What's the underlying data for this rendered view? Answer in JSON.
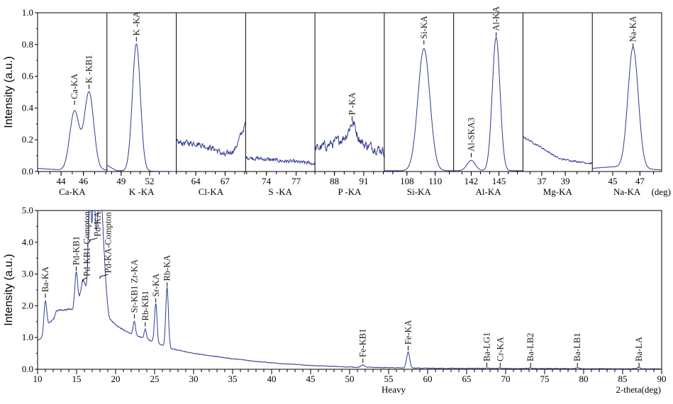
{
  "chart_data": [
    {
      "type": "line",
      "ylabel": "Intensity (a.u.)",
      "ylim": [
        0,
        1.0
      ],
      "yticks": [
        "0.0",
        "0.2",
        "0.4",
        "0.6",
        "0.8",
        "1.0"
      ],
      "xunit": "(deg)",
      "grid": false,
      "series_color": "#2f3b8f",
      "panels": [
        {
          "name": "Ca-KA",
          "xlim": [
            41.9,
            48.1
          ],
          "xticks": [
            44,
            46
          ],
          "bg": [
            [
              41.9,
              0.02
            ],
            [
              44,
              0.01
            ],
            [
              48.1,
              0.01
            ]
          ],
          "noise": 0.002,
          "peaks": [
            {
              "x": 45.2,
              "h": 0.37,
              "w": 0.42,
              "label": "Ca-KA",
              "ly": 0.42
            },
            {
              "x": 46.5,
              "h": 0.49,
              "w": 0.42,
              "label": "K -KB1",
              "ly": 0.52
            }
          ]
        },
        {
          "name": "K -KA",
          "xlim": [
            47.5,
            54.8
          ],
          "xticks": [
            49,
            52
          ],
          "bg": [
            [
              47.5,
              0.04
            ],
            [
              48.5,
              0.005
            ],
            [
              54.8,
              0.0
            ]
          ],
          "noise": 0.001,
          "peaks": [
            {
              "x": 50.6,
              "h": 0.8,
              "w": 0.42,
              "label": "K -KA",
              "ly": 0.82
            }
          ]
        },
        {
          "name": "Cl-KA",
          "xlim": [
            62,
            69.1
          ],
          "xticks": [
            64,
            67
          ],
          "bg": [
            [
              62,
              0.18
            ],
            [
              64,
              0.18
            ],
            [
              66,
              0.14
            ],
            [
              67,
              0.1
            ],
            [
              68,
              0.14
            ],
            [
              69.1,
              0.3
            ]
          ],
          "noise": 0.05,
          "peaks": []
        },
        {
          "name": "S -KA",
          "xlim": [
            71.9,
            78.9
          ],
          "xticks": [
            74,
            77
          ],
          "bg": [
            [
              71.9,
              0.09
            ],
            [
              75,
              0.07
            ],
            [
              78.9,
              0.05
            ]
          ],
          "noise": 0.035,
          "peaks": []
        },
        {
          "name": "P -KA",
          "xlim": [
            86,
            93.1
          ],
          "xticks": [
            88,
            91
          ],
          "bg": [
            [
              86,
              0.14
            ],
            [
              88,
              0.18
            ],
            [
              90,
              0.25
            ],
            [
              91,
              0.17
            ],
            [
              93.1,
              0.13
            ]
          ],
          "noise": 0.08,
          "peaks": [
            {
              "x": 89.8,
              "h": 0.06,
              "w": 0.3,
              "label": "P -KA",
              "ly": 0.32
            }
          ]
        },
        {
          "name": "Si-KA",
          "xlim": [
            106.4,
            111.3
          ],
          "xticks": [
            108,
            110
          ],
          "bg": [
            [
              106.4,
              0.005
            ],
            [
              111.3,
              0.005
            ]
          ],
          "noise": 0.001,
          "peaks": [
            {
              "x": 109.2,
              "h": 0.77,
              "w": 0.42,
              "label": "Si-KA",
              "ly": 0.8
            }
          ]
        },
        {
          "name": "Al-KA",
          "xlim": [
            140.1,
            147.6
          ],
          "xticks": [
            142,
            145
          ],
          "bg": [
            [
              140.1,
              0.005
            ],
            [
              147.6,
              0.005
            ]
          ],
          "noise": 0.001,
          "peaks": [
            {
              "x": 142.0,
              "h": 0.065,
              "w": 0.45,
              "label": "Al-SKA3",
              "ly": 0.09
            },
            {
              "x": 144.7,
              "h": 0.84,
              "w": 0.42,
              "label": "Al-KA",
              "ly": 0.85
            }
          ]
        },
        {
          "name": "Mg-KA",
          "xlim": [
            35.4,
            41.3
          ],
          "xticks": [
            37,
            39
          ],
          "bg": [
            [
              35.4,
              0.22
            ],
            [
              37,
              0.15
            ],
            [
              38.5,
              0.08
            ],
            [
              41.3,
              0.05
            ]
          ],
          "noise": 0.015,
          "peaks": []
        },
        {
          "name": "Na-KA",
          "xlim": [
            43.5,
            48.6
          ],
          "xticks": [
            45,
            47
          ],
          "bg": [
            [
              43.5,
              0.02
            ],
            [
              45,
              0.03
            ],
            [
              48.6,
              0.01
            ]
          ],
          "noise": 0.002,
          "peaks": [
            {
              "x": 46.5,
              "h": 0.76,
              "w": 0.38,
              "label": "Na-KA",
              "ly": 0.78
            }
          ]
        }
      ]
    },
    {
      "type": "line",
      "ylabel": "Intensity (a.u.)",
      "xlabel": "2-theta(deg)",
      "subtitle": "Heavy",
      "xlim": [
        10,
        90
      ],
      "ylim": [
        0,
        5.0
      ],
      "xticks": [
        10,
        15,
        20,
        25,
        30,
        35,
        40,
        45,
        50,
        55,
        60,
        65,
        70,
        75,
        80,
        85,
        90
      ],
      "yticks": [
        "0.0",
        "1.0",
        "2.0",
        "3.0",
        "4.0",
        "5.0"
      ],
      "grid": false,
      "series_color": "#2f3b8f",
      "bg": [
        [
          10,
          0.9
        ],
        [
          10.6,
          1.0
        ],
        [
          11.5,
          1.45
        ],
        [
          12.1,
          1.6
        ],
        [
          12.4,
          1.85
        ],
        [
          14.5,
          1.9
        ],
        [
          15.5,
          2.3
        ],
        [
          16.3,
          2.6
        ],
        [
          18.6,
          2.4
        ],
        [
          19.2,
          1.6
        ],
        [
          20,
          1.4
        ],
        [
          22,
          1.1
        ],
        [
          24,
          0.95
        ],
        [
          25.5,
          0.8
        ],
        [
          27,
          0.65
        ],
        [
          30,
          0.5
        ],
        [
          35,
          0.33
        ],
        [
          40,
          0.2
        ],
        [
          45,
          0.12
        ],
        [
          50,
          0.07
        ],
        [
          60,
          0.03
        ],
        [
          90,
          0.01
        ]
      ],
      "noise": 0.03,
      "peaks": [
        {
          "x": 11.0,
          "h": 0.95,
          "w": 0.18,
          "label": "Ba-KA",
          "ly": 2.25
        },
        {
          "x": 14.95,
          "h": 1.0,
          "w": 0.17,
          "label": "Pd-KB1",
          "ly": 3.1
        },
        {
          "x": 15.8,
          "h": 0.4,
          "w": 0.2,
          "label": "Pd-KB1-Compton",
          "ly": 2.75
        },
        {
          "x": 16.7,
          "h": 3.5,
          "w": 0.17,
          "label": "Pd-KA",
          "ly": 4.0
        },
        {
          "x": 17.2,
          "h": 3.0,
          "w": 0.15
        },
        {
          "x": 18.0,
          "h": 3.2,
          "w": 0.4,
          "label": "Pd-KA-Compton",
          "ly": 2.85
        },
        {
          "x": 22.4,
          "h": 0.45,
          "w": 0.15,
          "label": "Sr-KB1 Zr-KA",
          "ly": 1.6
        },
        {
          "x": 23.8,
          "h": 0.3,
          "w": 0.14,
          "label": "Rb-KB1",
          "ly": 1.35
        },
        {
          "x": 25.15,
          "h": 1.25,
          "w": 0.16,
          "label": "Sr-KA",
          "ly": 2.1
        },
        {
          "x": 26.6,
          "h": 1.9,
          "w": 0.17,
          "label": "Rb-KA",
          "ly": 2.6
        },
        {
          "x": 51.7,
          "h": 0.08,
          "w": 0.2,
          "label": "Fe-KB1",
          "ly": 0.2
        },
        {
          "x": 57.5,
          "h": 0.5,
          "w": 0.2,
          "label": "Fe-KA",
          "ly": 0.6
        },
        {
          "x": 67.6,
          "h": 0.02,
          "w": 0.2,
          "label": "Ba-LG1",
          "ly": 0.07
        },
        {
          "x": 69.3,
          "h": 0.015,
          "w": 0.2,
          "label": "Cr-KA",
          "ly": 0.07
        },
        {
          "x": 73.2,
          "h": 0.02,
          "w": 0.2,
          "label": "Ba-LB2",
          "ly": 0.07
        },
        {
          "x": 79.2,
          "h": 0.04,
          "w": 0.2,
          "label": "Ba-LB1",
          "ly": 0.07
        },
        {
          "x": 87.1,
          "h": 0.05,
          "w": 0.2,
          "label": "Ba-LA",
          "ly": 0.07
        }
      ]
    }
  ]
}
